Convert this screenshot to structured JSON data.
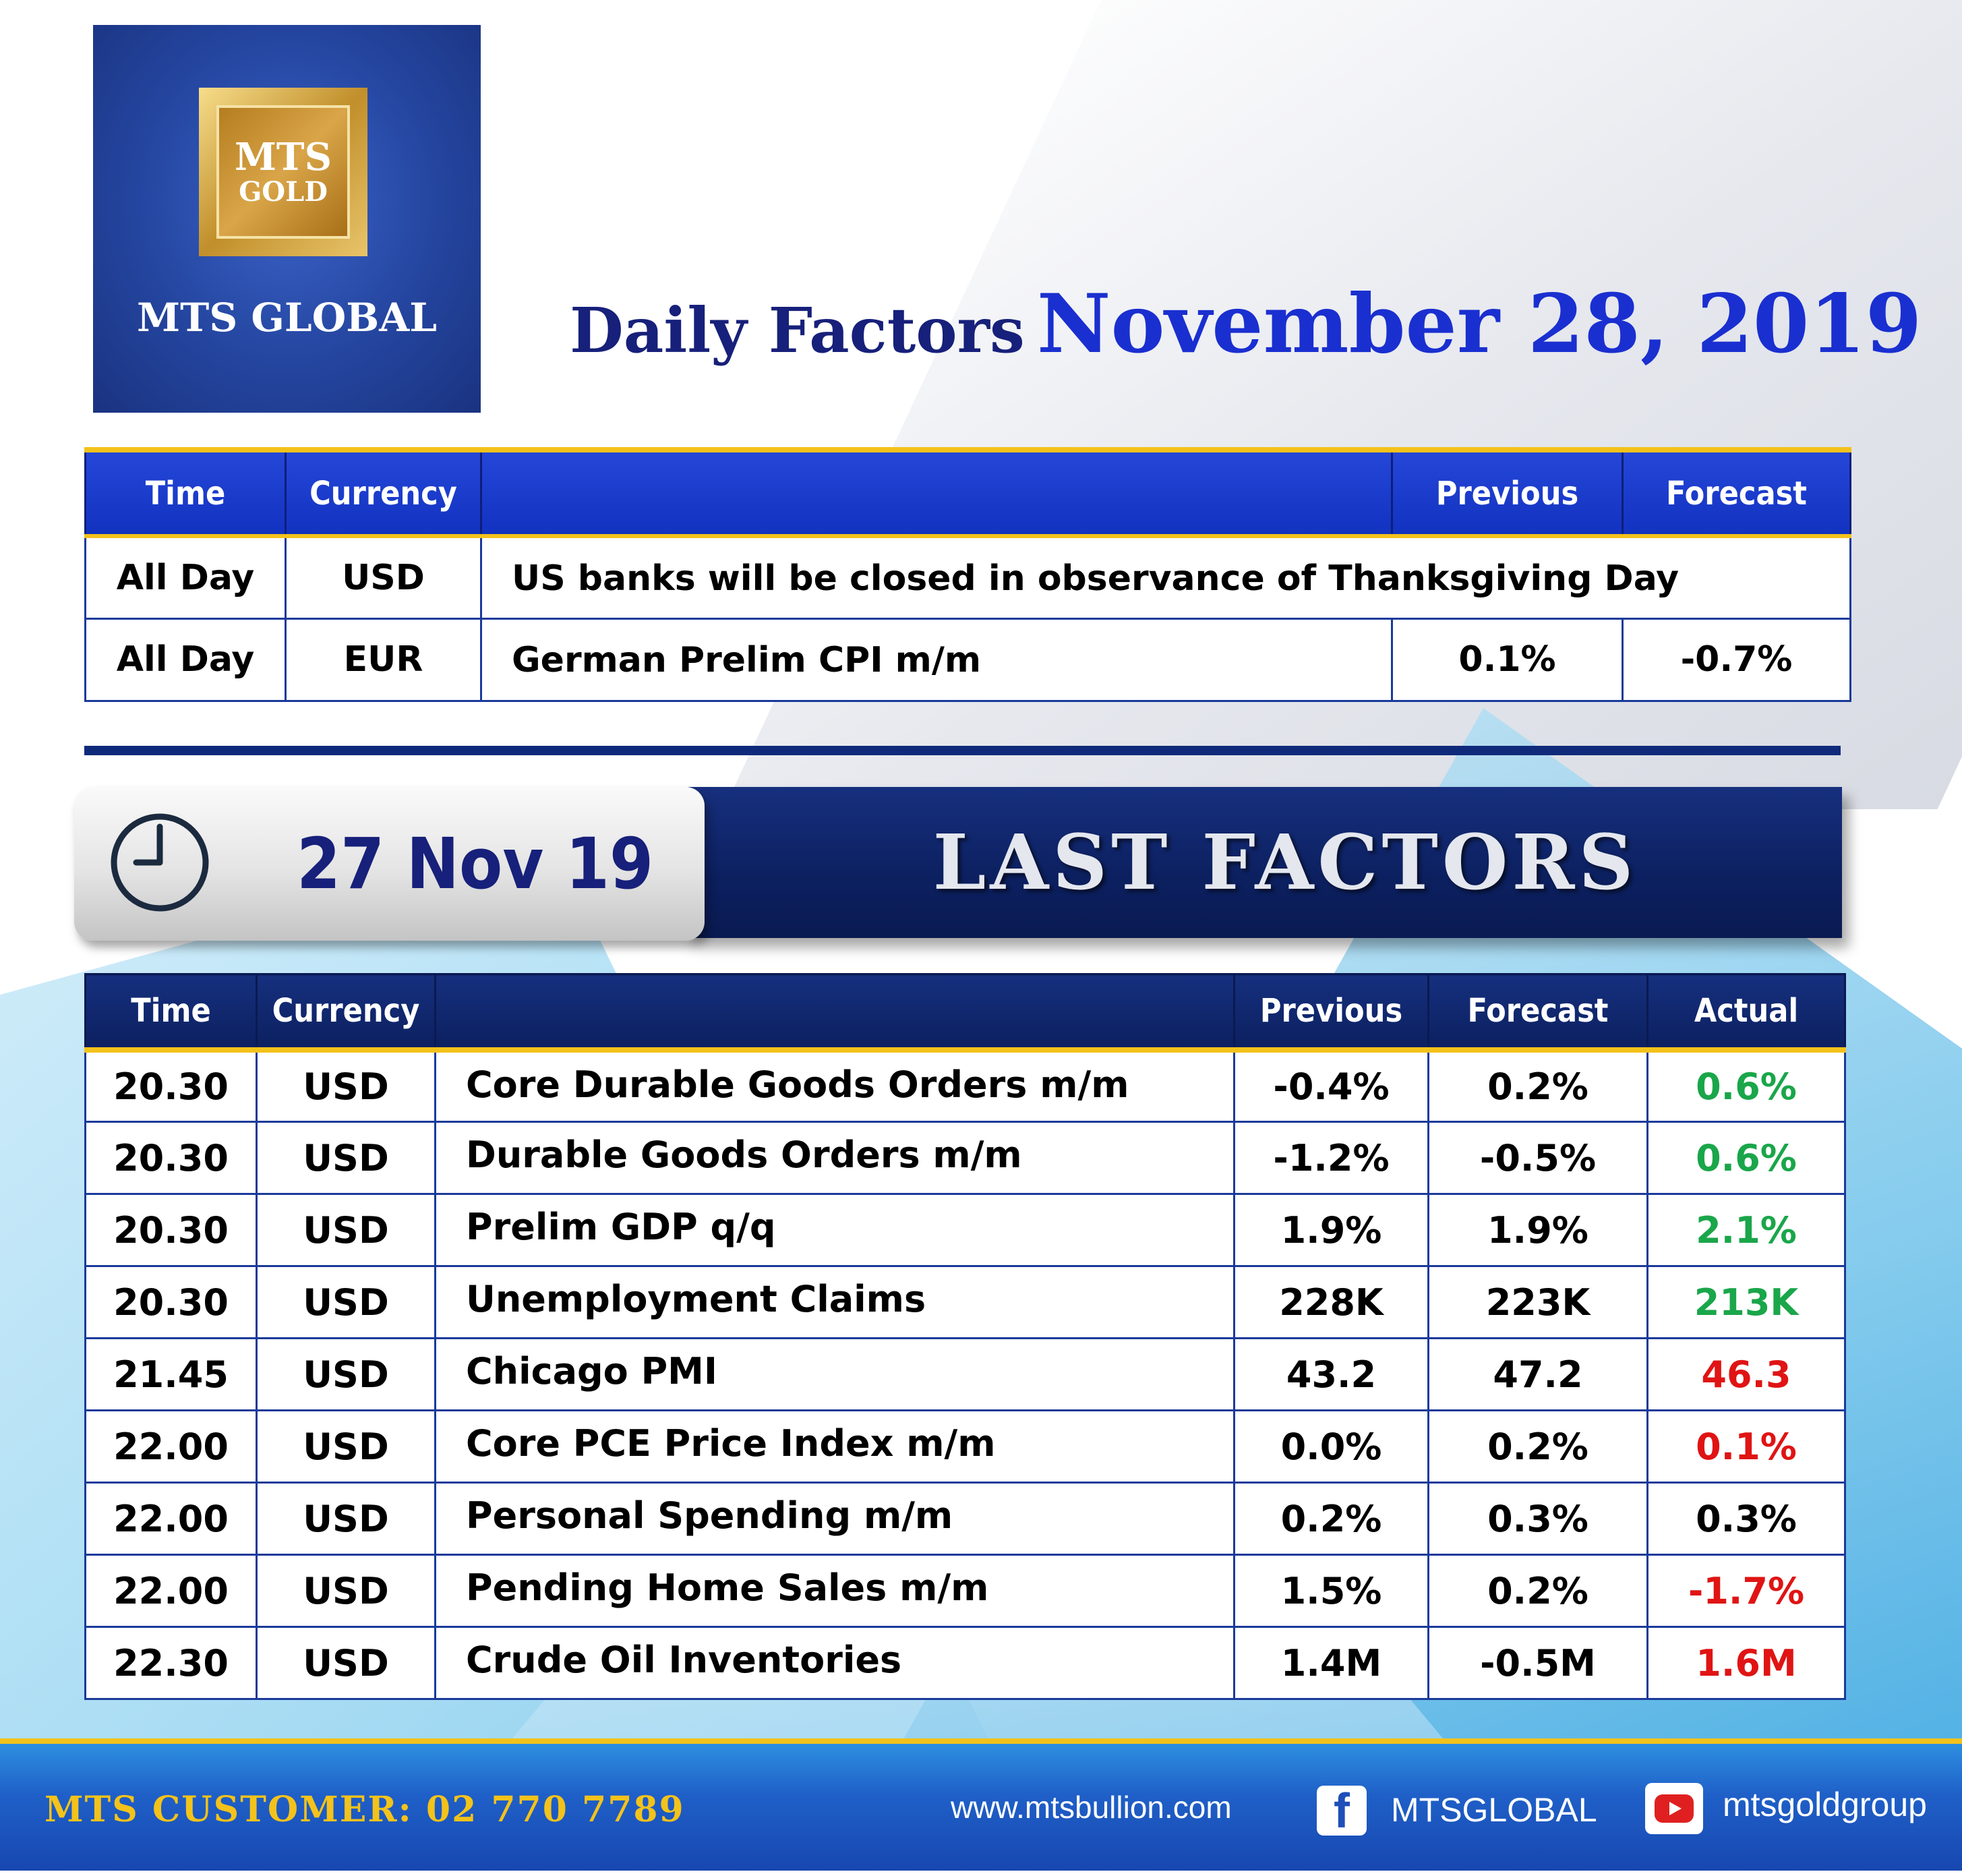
{
  "logo": {
    "line1": "MTS",
    "line2": "GOLD",
    "name": "MTS GLOBAL"
  },
  "title": {
    "prefix": "Daily Factors",
    "date": "November 28, 2019"
  },
  "today_table": {
    "headers": {
      "time": "Time",
      "currency": "Currency",
      "event": "",
      "previous": "Previous",
      "forecast": "Forecast"
    },
    "rows": [
      {
        "time": "All Day",
        "currency": "USD",
        "event": "US banks will be closed in observance of Thanksgiving Day"
      },
      {
        "time": "All Day",
        "currency": "EUR",
        "event": "German Prelim CPI m/m",
        "previous": "0.1%",
        "forecast": "-0.7%"
      }
    ]
  },
  "last": {
    "date": "27 Nov  19",
    "heading": "LAST  FACTORS"
  },
  "last_table": {
    "headers": {
      "time": "Time",
      "currency": "Currency",
      "event": "",
      "previous": "Previous",
      "forecast": "Forecast",
      "actual": "Actual"
    },
    "rows": [
      {
        "time": "20.30",
        "currency": "USD",
        "event": "Core Durable Goods Orders m/m",
        "previous": "-0.4%",
        "forecast": "0.2%",
        "actual": "0.6%",
        "actual_color": "#1aa64a"
      },
      {
        "time": "20.30",
        "currency": "USD",
        "event": "Durable Goods Orders m/m",
        "previous": "-1.2%",
        "forecast": "-0.5%",
        "actual": "0.6%",
        "actual_color": "#1aa64a"
      },
      {
        "time": "20.30",
        "currency": "USD",
        "event": "Prelim GDP q/q",
        "previous": "1.9%",
        "forecast": "1.9%",
        "actual": "2.1%",
        "actual_color": "#1aa64a"
      },
      {
        "time": "20.30",
        "currency": "USD",
        "event": "Unemployment Claims",
        "previous": "228K",
        "forecast": "223K",
        "actual": "213K",
        "actual_color": "#1aa64a"
      },
      {
        "time": "21.45",
        "currency": "USD",
        "event": "Chicago PMI",
        "previous": "43.2",
        "forecast": "47.2",
        "actual": "46.3",
        "actual_color": "#e01414"
      },
      {
        "time": "22.00",
        "currency": "USD",
        "event": "Core PCE Price Index m/m",
        "previous": "0.0%",
        "forecast": "0.2%",
        "actual": "0.1%",
        "actual_color": "#e01414"
      },
      {
        "time": "22.00",
        "currency": "USD",
        "event": "Personal Spending m/m",
        "previous": "0.2%",
        "forecast": "0.3%",
        "actual": "0.3%",
        "actual_color": "#000000"
      },
      {
        "time": "22.00",
        "currency": "USD",
        "event": "Pending Home Sales m/m",
        "previous": "1.5%",
        "forecast": "0.2%",
        "actual": "-1.7%",
        "actual_color": "#e01414"
      },
      {
        "time": "22.30",
        "currency": "USD",
        "event": "Crude Oil Inventories",
        "previous": "1.4M",
        "forecast": "-0.5M",
        "actual": "1.6M",
        "actual_color": "#e01414"
      }
    ]
  },
  "footer": {
    "customer": "MTS CUSTOMER: 02 770 7789",
    "website": "www.mtsbullion.com",
    "facebook": "MTSGLOBAL",
    "youtube": "mtsgoldgroup",
    "facebook_icon": "facebook-icon",
    "youtube_icon": "youtube-icon"
  },
  "colors": {
    "accent_gold": "#f3c21b",
    "navy": "#0c2060",
    "royal_blue": "#1232c0",
    "positive": "#1aa64a",
    "negative": "#e01414"
  }
}
